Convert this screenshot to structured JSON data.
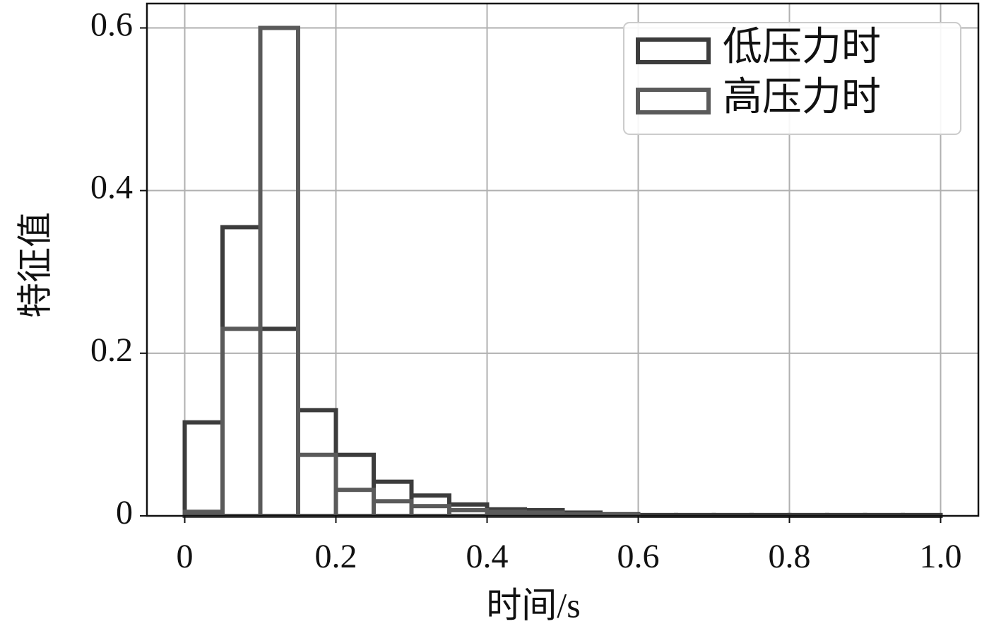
{
  "chart_data": {
    "type": "histogram",
    "xlabel": "时间/s",
    "ylabel": "特征值",
    "bins": [
      0,
      0.05,
      0.1,
      0.15,
      0.2,
      0.25,
      0.3,
      0.35,
      0.4,
      0.45,
      0.5,
      0.55,
      0.6,
      0.65,
      0.7,
      0.75,
      0.8,
      0.85,
      0.9,
      0.95,
      1.0
    ],
    "series": [
      {
        "name": "低压力时",
        "color": "#3c3c3c",
        "values": [
          0.115,
          0.355,
          0.23,
          0.13,
          0.075,
          0.042,
          0.025,
          0.014,
          0.008,
          0.007,
          0.004,
          0.002,
          0.001,
          0.001,
          0.001,
          0.001,
          0.001,
          0.001,
          0.001,
          0.001
        ]
      },
      {
        "name": "高压力时",
        "color": "#5a5a5a",
        "values": [
          0.005,
          0.23,
          0.6,
          0.075,
          0.032,
          0.018,
          0.012,
          0.007,
          0.005,
          0.004,
          0.002,
          0.001,
          0,
          0,
          0,
          0,
          0,
          0,
          0,
          0
        ]
      }
    ],
    "xlim": [
      -0.05,
      1.05
    ],
    "ylim": [
      0,
      0.63
    ],
    "xticks": [
      0,
      0.2,
      0.4,
      0.6,
      0.8,
      {
        "value": 1,
        "label": "1.0"
      }
    ],
    "yticks": [
      0,
      0.2,
      0.4,
      0.6
    ],
    "grid": true,
    "legend": "upper right"
  }
}
